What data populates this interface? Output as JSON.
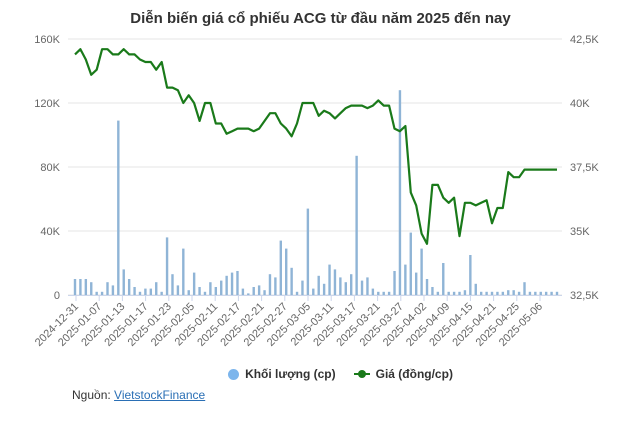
{
  "title": "Diễn biến giá cổ phiếu ACG từ đầu năm 2025 đến nay",
  "legend": {
    "volume_label": "Khối lượng (cp)",
    "price_label": "Giá (đồng/cp)"
  },
  "source": {
    "prefix": "Nguồn:",
    "link_text": "VietstockFinance"
  },
  "colors": {
    "volume": "#7cb5ec",
    "volume_bar": "#8fb4d6",
    "price": "#1a7a1a",
    "grid": "#e6e6e6",
    "axis_text": "#666666"
  },
  "chart_data": {
    "type": "bar+line",
    "title": "Diễn biến giá cổ phiếu ACG từ đầu năm 2025 đến nay",
    "xlabel": "",
    "ylabel_left": "Khối lượng (cp)",
    "ylabel_right": "Giá (đồng/cp)",
    "y_left": {
      "min": 0,
      "max": 160000,
      "ticks": [
        "0",
        "40K",
        "80K",
        "120K",
        "160K"
      ]
    },
    "y_right": {
      "min": 32500,
      "max": 42500,
      "ticks": [
        "32,5K",
        "35K",
        "37,5K",
        "40K",
        "42,5K"
      ]
    },
    "x_tick_labels": [
      "2024-12-31",
      "2025-01-07",
      "2025-01-13",
      "2025-01-17",
      "2025-01-23",
      "2025-02-05",
      "2025-02-11",
      "2025-02-17",
      "2025-02-21",
      "2025-02-27",
      "2025-03-05",
      "2025-03-11",
      "2025-03-17",
      "2025-03-21",
      "2025-03-27",
      "2025-04-02",
      "2025-04-09",
      "2025-04-15",
      "2025-04-21",
      "2025-04-25",
      "2025-05-06"
    ],
    "grid": true,
    "legend_position": "bottom",
    "series": [
      {
        "name": "Khối lượng (cp)",
        "type": "bar",
        "axis": "left",
        "values": [
          10000,
          10000,
          10000,
          8000,
          2000,
          2000,
          8000,
          6000,
          109000,
          16000,
          10000,
          5000,
          2000,
          4000,
          4000,
          8000,
          2000,
          36000,
          13000,
          6000,
          29000,
          3000,
          14000,
          5000,
          2000,
          8000,
          5000,
          9000,
          12000,
          14000,
          15000,
          4000,
          1000,
          5000,
          6000,
          3000,
          13000,
          11000,
          34000,
          29000,
          17000,
          2000,
          9000,
          54000,
          4000,
          12000,
          7000,
          19000,
          16000,
          11000,
          8000,
          13000,
          87000,
          9000,
          11000,
          4000,
          2000,
          2000,
          2000,
          15000,
          128000,
          19000,
          39000,
          14000,
          29000,
          10000,
          5000,
          2000,
          20000,
          2000,
          2000,
          2000,
          3000,
          25000,
          7000,
          2000,
          2000,
          2000,
          2000,
          2000,
          3000,
          3000,
          2000,
          8000,
          2000,
          2000,
          2000,
          2000,
          2000,
          2000
        ]
      },
      {
        "name": "Giá (đồng/cp)",
        "type": "line",
        "axis": "right",
        "values": [
          41900,
          42100,
          41700,
          41100,
          41300,
          42100,
          42100,
          41900,
          41900,
          42100,
          41900,
          41900,
          41700,
          41600,
          41600,
          41300,
          41600,
          40600,
          40600,
          40500,
          40000,
          40300,
          40000,
          39300,
          40000,
          40000,
          39200,
          39200,
          38800,
          38900,
          39000,
          39000,
          39000,
          38900,
          39000,
          39300,
          39600,
          39600,
          39200,
          39000,
          38700,
          39200,
          40000,
          40000,
          40000,
          39500,
          39700,
          39600,
          39400,
          39600,
          39800,
          39900,
          39900,
          39900,
          39800,
          39900,
          40100,
          39900,
          39900,
          39000,
          38900,
          39100,
          36500,
          36000,
          34900,
          34500,
          36800,
          36800,
          36300,
          36100,
          36300,
          34800,
          36100,
          36100,
          36000,
          36100,
          36200,
          35300,
          35900,
          35900,
          37300,
          37100,
          37100,
          37400,
          37400,
          37400,
          37400,
          37400,
          37400,
          37400
        ]
      }
    ]
  }
}
